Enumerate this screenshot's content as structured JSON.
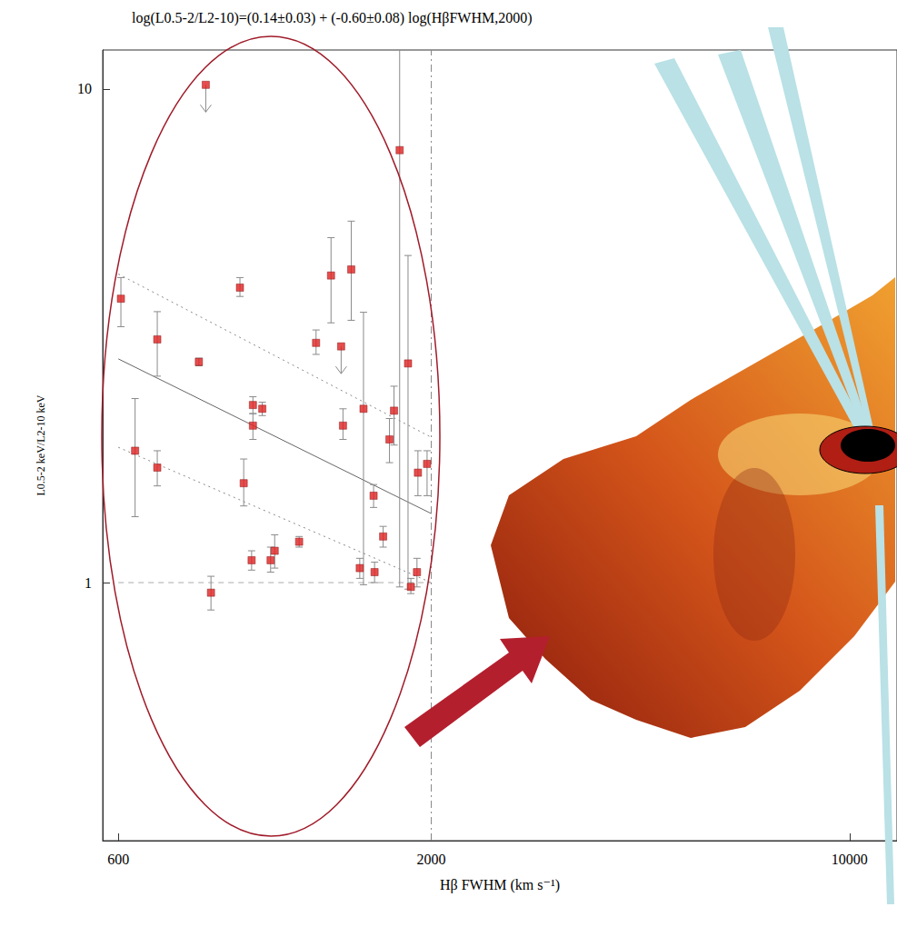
{
  "chart_data": {
    "type": "scatter",
    "title": "log(L0.5-2/L2-10)=(0.14±0.03) + (-0.60±0.08) log(HβFWHM,2000)",
    "x_label": "Hβ FWHM (km s⁻¹)",
    "y_label": "L0.5-2 keV/L2-10 keV",
    "log": true,
    "grid": false,
    "xlim": [
      565,
      12000
    ],
    "xticks": [
      600,
      2000,
      10000
    ],
    "ylim": [
      0.3,
      12
    ],
    "yticks": [
      1,
      10
    ],
    "color": "#e02020",
    "marker": "square",
    "x": [
      606,
      640,
      697,
      697,
      818,
      840,
      857,
      958,
      972,
      1007,
      1007,
      1044,
      1002,
      1078,
      1095,
      1203,
      1284,
      1360,
      1414,
      1424,
      1470,
      1519,
      1541,
      1602,
      1608,
      1662,
      1703,
      1733,
      1771,
      1829,
      1849,
      1900,
      1893,
      1968
    ],
    "values": [
      3.76,
      1.85,
      3.11,
      1.71,
      2.8,
      10.2,
      0.954,
      3.96,
      1.59,
      2.29,
      2.08,
      2.25,
      1.11,
      1.11,
      1.16,
      1.21,
      3.06,
      4.19,
      3.01,
      2.08,
      4.31,
      1.07,
      2.25,
      1.5,
      1.05,
      1.24,
      1.95,
      2.23,
      7.52,
      2.78,
      0.98,
      1.67,
      1.05,
      1.74
    ],
    "y_err_low": [
      3.3,
      1.36,
      2.62,
      1.57,
      2.75,
      null,
      0.88,
      3.8,
      1.43,
      2.2,
      1.95,
      2.18,
      1.06,
      1.05,
      1.07,
      1.18,
      2.9,
      3.36,
      null,
      1.95,
      3.4,
      1.02,
      0.99,
      1.42,
      1.0,
      1.18,
      1.75,
      1.9,
      0.98,
      0.97,
      0.95,
      1.5,
      0.98,
      1.5
    ],
    "y_err_high": [
      4.15,
      2.36,
      3.54,
      1.85,
      2.85,
      null,
      1.03,
      4.15,
      1.78,
      2.38,
      2.2,
      2.32,
      1.16,
      1.18,
      1.25,
      1.24,
      3.25,
      5.0,
      null,
      2.25,
      5.4,
      1.12,
      3.53,
      1.58,
      1.1,
      1.3,
      2.15,
      2.5,
      13,
      4.6,
      1.02,
      1.85,
      1.12,
      1.85
    ],
    "upper_limits": [
      false,
      false,
      false,
      false,
      false,
      true,
      false,
      false,
      false,
      false,
      false,
      false,
      false,
      false,
      false,
      false,
      false,
      false,
      true,
      false,
      false,
      false,
      false,
      false,
      false,
      false,
      false,
      false,
      false,
      false,
      false,
      false,
      false,
      false
    ],
    "lines": [
      {
        "line_style": "solid",
        "color": "#666666",
        "x": [
          600,
          2000
        ],
        "values": [
          2.84,
          1.38
        ]
      },
      {
        "line_style": "dotted",
        "color": "#888888",
        "x": [
          600,
          2000
        ],
        "values": [
          4.22,
          1.97
        ]
      },
      {
        "line_style": "dotted",
        "color": "#888888",
        "x": [
          600,
          2000
        ],
        "values": [
          1.88,
          1.0
        ]
      },
      {
        "line_style": "dashed",
        "color": "#aaaaaa",
        "x": [
          600,
          2000
        ],
        "values": [
          1,
          1
        ]
      },
      {
        "line_style": "dashdot",
        "color": "#888888",
        "x": [
          2000,
          2000
        ],
        "values": [
          0.3,
          12
        ]
      }
    ]
  }
}
